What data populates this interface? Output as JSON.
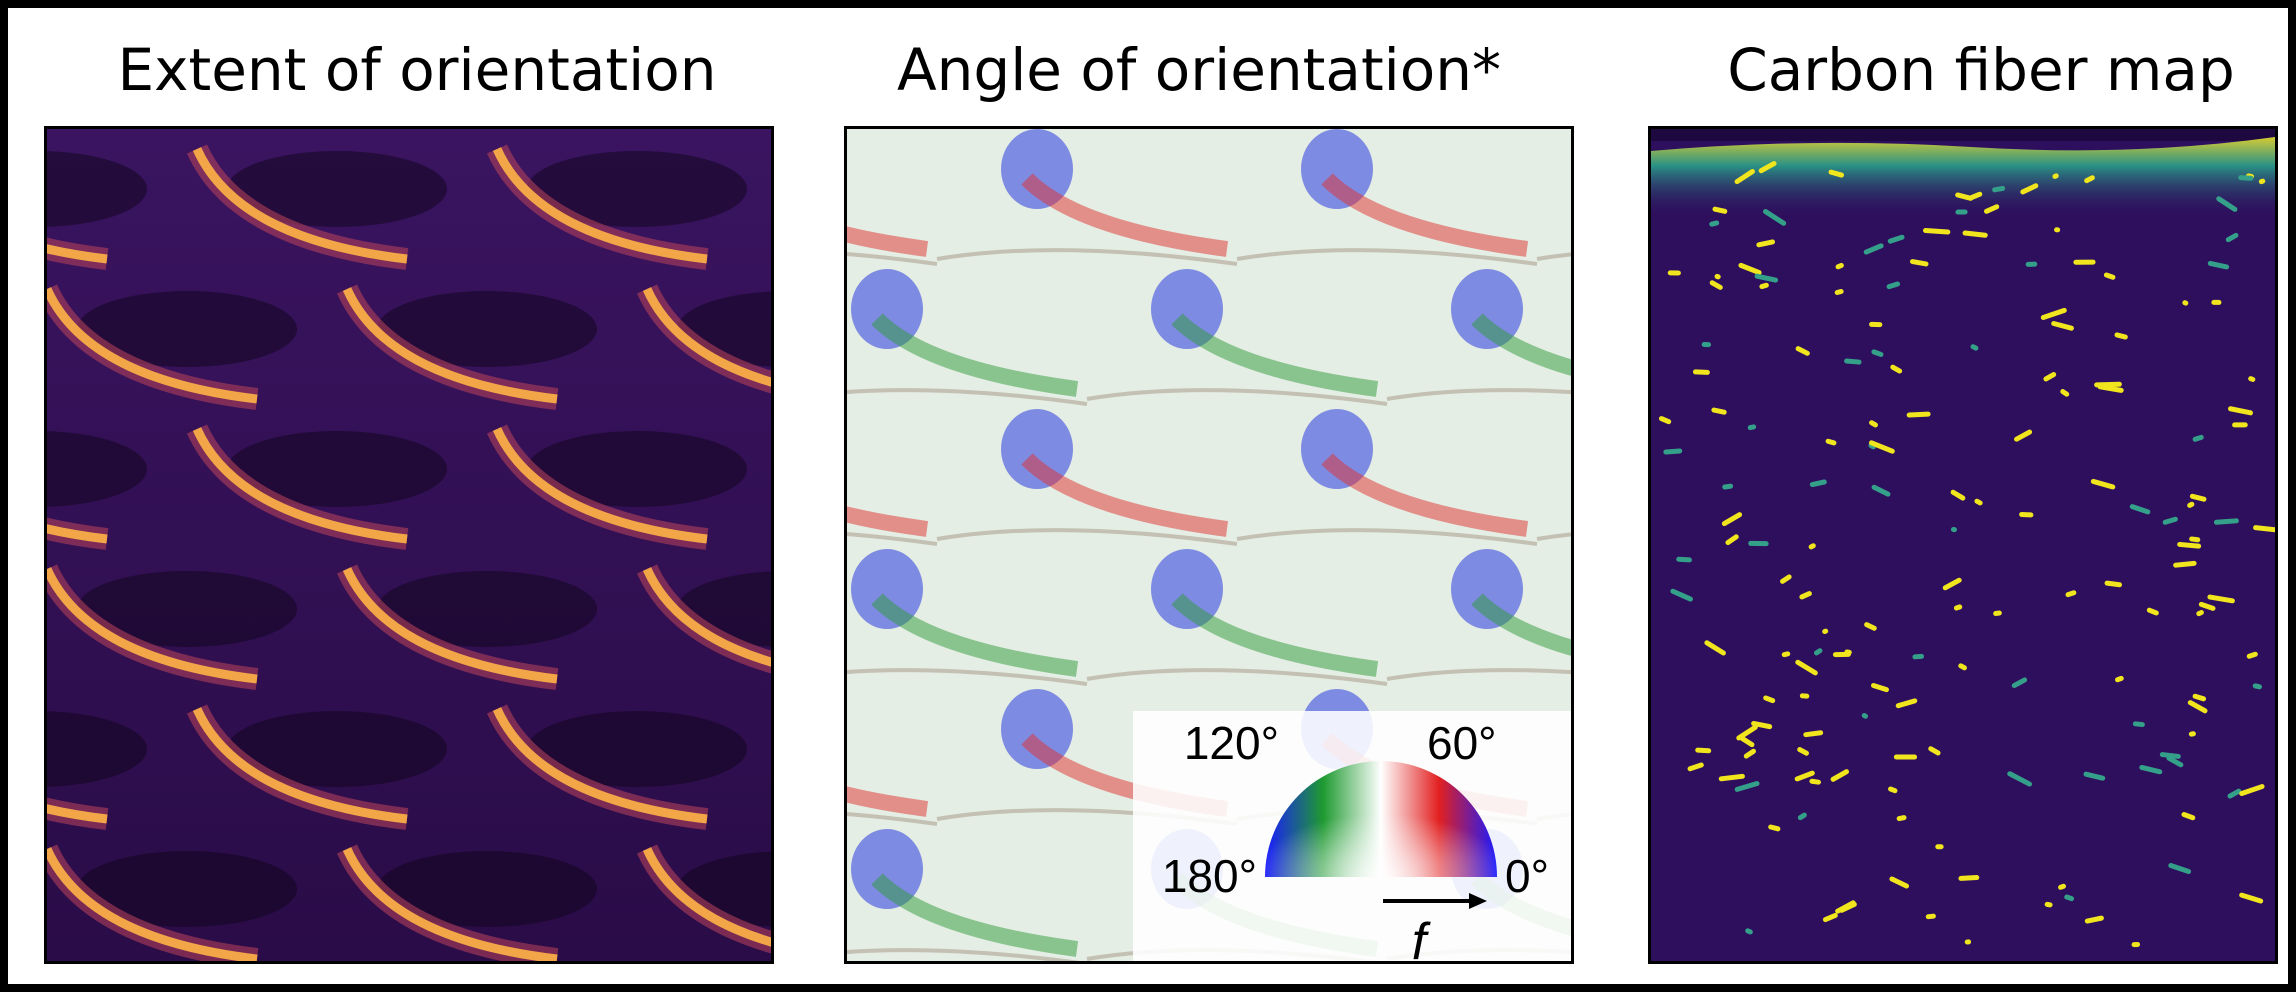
{
  "panels": [
    {
      "title": "Extent of orientation",
      "colormap": "inferno"
    },
    {
      "title": "Angle of orientation*",
      "colormap": "hsv-angle"
    },
    {
      "title": "Carbon fiber map",
      "colormap": "viridis"
    }
  ],
  "legend": {
    "label_0": "0°",
    "label_60": "60°",
    "label_120": "120°",
    "label_180": "180°",
    "arrow_label": "f",
    "colors": {
      "deg0": "#1a1aff",
      "deg60": "#e22020",
      "deg120": "#1e9a30",
      "deg180": "#1a1aff"
    }
  },
  "colors": {
    "inferno_dark": "#1b0b30",
    "inferno_mid": "#5a1a6a",
    "inferno_bright": "#f0a040",
    "viridis_dark": "#2a0d5c",
    "viridis_yellow": "#f1e51d",
    "viridis_teal": "#2a8a8a"
  }
}
